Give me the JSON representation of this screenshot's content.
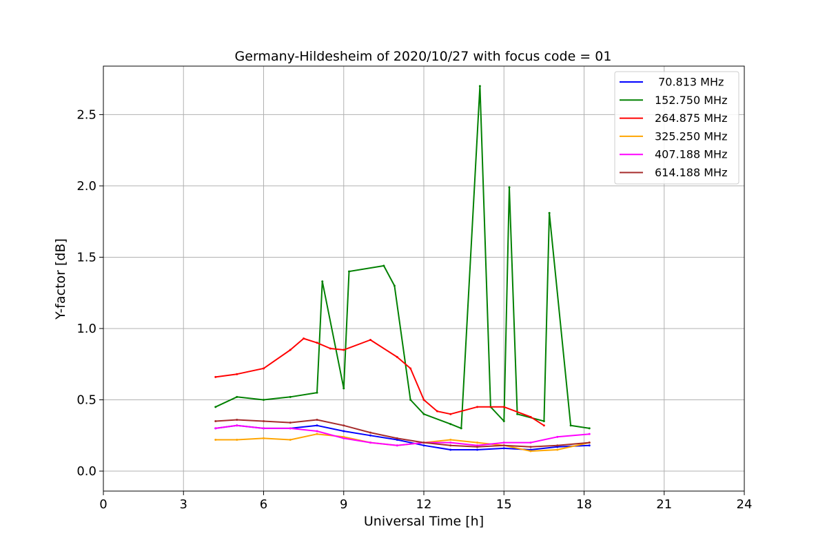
{
  "chart_data": {
    "type": "line",
    "title": "Germany-Hildesheim of 2020/10/27 with focus code = 01",
    "xlabel": "Universal Time [h]",
    "ylabel": "Y-factor [dB]",
    "xlim": [
      0,
      24
    ],
    "ylim": [
      -0.14,
      2.84
    ],
    "x_ticks": [
      0,
      3,
      6,
      9,
      12,
      15,
      18,
      21,
      24
    ],
    "x_tick_labels": [
      "0",
      "3",
      "6",
      "9",
      "12",
      "15",
      "18",
      "21",
      "24"
    ],
    "y_ticks": [
      0.0,
      0.5,
      1.0,
      1.5,
      2.0,
      2.5
    ],
    "y_tick_labels": [
      "0.0",
      "0.5",
      "1.0",
      "1.5",
      "2.0",
      "2.5"
    ],
    "grid": true,
    "legend_position": "top-right",
    "series": [
      {
        "name": " 70.813 MHz",
        "color": "#0000ff",
        "x": [
          4.2,
          5,
          6,
          7,
          8,
          9,
          10,
          11,
          12,
          13,
          14,
          15,
          16,
          17,
          18.2
        ],
        "y": [
          0.3,
          0.32,
          0.3,
          0.3,
          0.32,
          0.28,
          0.25,
          0.22,
          0.18,
          0.15,
          0.15,
          0.16,
          0.15,
          0.17,
          0.18
        ]
      },
      {
        "name": "152.750 MHz",
        "color": "#008000",
        "x": [
          4.2,
          5,
          6,
          7,
          8,
          8.2,
          9,
          9.2,
          10.5,
          10.9,
          11.5,
          12,
          13,
          13.4,
          14.1,
          14.5,
          15,
          15.2,
          15.5,
          16.5,
          16.7,
          17.5,
          18.2
        ],
        "y": [
          0.45,
          0.52,
          0.5,
          0.52,
          0.55,
          1.33,
          0.58,
          1.4,
          1.44,
          1.3,
          0.5,
          0.4,
          0.33,
          0.3,
          2.7,
          0.45,
          0.35,
          1.99,
          0.4,
          0.35,
          1.81,
          0.32,
          0.3
        ]
      },
      {
        "name": "264.875 MHz",
        "color": "#ff0000",
        "x": [
          4.2,
          5,
          6,
          7,
          7.5,
          8,
          8.5,
          9,
          10,
          11,
          11.5,
          12,
          12.5,
          13,
          14,
          15,
          16,
          16.5
        ],
        "y": [
          0.66,
          0.68,
          0.72,
          0.85,
          0.93,
          0.9,
          0.86,
          0.85,
          0.92,
          0.8,
          0.72,
          0.5,
          0.42,
          0.4,
          0.45,
          0.45,
          0.38,
          0.32
        ]
      },
      {
        "name": "325.250 MHz",
        "color": "#ffa500",
        "x": [
          4.2,
          5,
          6,
          7,
          8,
          9,
          10,
          11,
          12,
          13,
          14,
          15,
          16,
          17,
          18.2
        ],
        "y": [
          0.22,
          0.22,
          0.23,
          0.22,
          0.26,
          0.24,
          0.2,
          0.18,
          0.2,
          0.22,
          0.2,
          0.18,
          0.14,
          0.15,
          0.2
        ]
      },
      {
        "name": "407.188 MHz",
        "color": "#ff00ff",
        "x": [
          4.2,
          5,
          6,
          7,
          8,
          9,
          10,
          11,
          12,
          13,
          14,
          15,
          16,
          17,
          18.2
        ],
        "y": [
          0.3,
          0.32,
          0.3,
          0.3,
          0.28,
          0.23,
          0.2,
          0.18,
          0.2,
          0.2,
          0.18,
          0.2,
          0.2,
          0.24,
          0.26
        ]
      },
      {
        "name": "614.188 MHz",
        "color": "#a52a2a",
        "x": [
          4.2,
          5,
          6,
          7,
          8,
          9,
          10,
          11,
          12,
          13,
          14,
          15,
          16,
          17,
          18.2
        ],
        "y": [
          0.35,
          0.36,
          0.35,
          0.34,
          0.36,
          0.32,
          0.27,
          0.23,
          0.2,
          0.18,
          0.17,
          0.18,
          0.17,
          0.18,
          0.2
        ]
      }
    ]
  }
}
